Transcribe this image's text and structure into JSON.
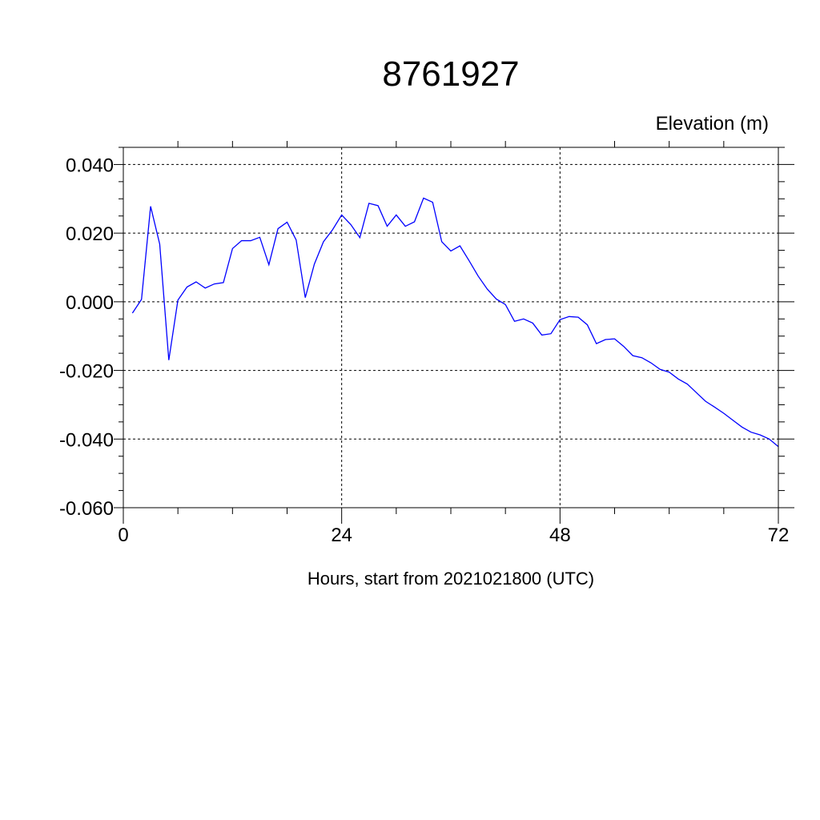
{
  "chart_data": {
    "type": "line",
    "title": "8761927",
    "ylabel": "Elevation (m)",
    "xlabel": "Hours, start from 2021021800 (UTC)",
    "xlim": [
      0,
      72
    ],
    "ylim": [
      -0.06,
      0.045
    ],
    "x_ticks": [
      0,
      24,
      48,
      72
    ],
    "x_tick_labels": [
      "0",
      "24",
      "48",
      "72"
    ],
    "y_ticks": [
      0.04,
      0.02,
      0.0,
      -0.02,
      -0.04,
      -0.06
    ],
    "y_tick_labels": [
      "0.040",
      "0.020",
      "0.000",
      "-0.020",
      "-0.040",
      "-0.060"
    ],
    "grid": true,
    "line_color": "#0000ff",
    "series": [
      {
        "x": [
          1,
          2,
          3,
          4,
          5,
          6,
          7,
          8,
          9,
          10,
          11,
          12,
          13,
          14,
          15,
          16,
          17,
          18,
          19,
          20,
          21,
          22,
          23,
          24,
          25,
          26,
          27,
          28,
          29,
          30,
          31,
          32,
          33,
          34,
          35,
          36,
          37,
          38,
          39,
          40,
          41,
          42,
          43,
          44,
          45,
          46,
          47,
          48,
          49,
          50,
          51,
          52,
          53,
          54,
          55,
          56,
          57,
          58,
          59,
          60,
          61,
          62,
          63,
          64,
          65,
          66,
          67,
          68,
          69,
          70,
          71,
          72
        ],
        "values": [
          -0.0033,
          0.0007,
          0.0278,
          0.0168,
          -0.017,
          0.0005,
          0.0043,
          0.0058,
          0.004,
          0.0052,
          0.0056,
          0.0155,
          0.0178,
          0.0178,
          0.0188,
          0.0108,
          0.0213,
          0.0232,
          0.018,
          0.0012,
          0.011,
          0.0175,
          0.021,
          0.0253,
          0.0225,
          0.0187,
          0.0287,
          0.028,
          0.022,
          0.0253,
          0.022,
          0.0233,
          0.0302,
          0.029,
          0.0175,
          0.0148,
          0.0163,
          0.012,
          0.0075,
          0.0037,
          0.0008,
          -0.0008,
          -0.0057,
          -0.005,
          -0.0062,
          -0.0097,
          -0.0093,
          -0.0052,
          -0.0043,
          -0.0045,
          -0.0067,
          -0.0122,
          -0.011,
          -0.0108,
          -0.013,
          -0.0157,
          -0.0163,
          -0.0178,
          -0.0197,
          -0.0205,
          -0.0225,
          -0.024,
          -0.0265,
          -0.029,
          -0.0307,
          -0.0325,
          -0.0345,
          -0.0365,
          -0.038,
          -0.0388,
          -0.04,
          -0.0422
        ]
      }
    ]
  }
}
